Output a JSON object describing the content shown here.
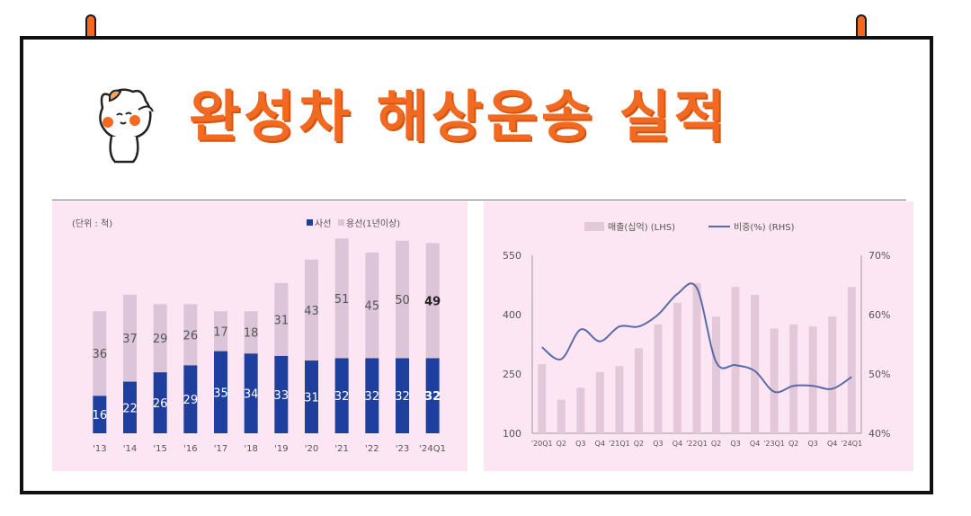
{
  "title": "완성차 해상운송 실적",
  "colors": {
    "accent": "#f26a21",
    "panel_bg": "#fce6f3",
    "own_ship": "#1f3f9e",
    "charter": "#dcc5d8",
    "sales_bar": "#e3c8d9",
    "share_line": "#5a6aa8"
  },
  "chart_data": [
    {
      "type": "bar",
      "stacked": true,
      "unit_label": "(단위 : 척)",
      "legend_position": "top-right",
      "categories": [
        "'13",
        "'14",
        "'15",
        "'16",
        "'17",
        "'18",
        "'19",
        "'20",
        "'21",
        "'22",
        "'23",
        "'24Q1"
      ],
      "series": [
        {
          "name": "사선",
          "color": "#1f3f9e",
          "values": [
            16,
            22,
            26,
            29,
            35,
            34,
            33,
            31,
            32,
            32,
            32,
            32
          ]
        },
        {
          "name": "용선(1년이상)",
          "color": "#dcc5d8",
          "values": [
            36,
            37,
            29,
            26,
            17,
            18,
            31,
            43,
            51,
            45,
            50,
            49
          ]
        }
      ],
      "ylim": [
        0,
        85
      ],
      "grid": false
    },
    {
      "type": "bar+line",
      "legend_position": "top",
      "categories": [
        "'20Q1",
        "Q2",
        "Q3",
        "Q4",
        "'21Q1",
        "Q2",
        "Q3",
        "Q4",
        "'22Q1",
        "Q2",
        "Q3",
        "Q4",
        "'23Q1",
        "Q2",
        "Q3",
        "Q4",
        "'24Q1"
      ],
      "series": [
        {
          "name": "매출(십억) (LHS)",
          "type": "bar",
          "axis": "left",
          "color": "#e3c8d9",
          "values": [
            275,
            185,
            215,
            255,
            270,
            315,
            375,
            430,
            480,
            395,
            470,
            450,
            365,
            375,
            370,
            395,
            470
          ]
        },
        {
          "name": "비중(%) (RHS)",
          "type": "line",
          "axis": "right",
          "color": "#5a6aa8",
          "values": [
            54.5,
            52.5,
            57.5,
            55.5,
            58,
            58,
            60,
            63.5,
            64.5,
            52,
            51.5,
            50.5,
            47,
            48,
            48,
            47.5,
            49.5
          ]
        }
      ],
      "left_ticks": [
        "550",
        "400",
        "250",
        "100"
      ],
      "right_ticks": [
        "70%",
        "60%",
        "50%",
        "40%"
      ],
      "ylim_left": [
        100,
        550
      ],
      "ylim_right": [
        40,
        70
      ],
      "grid": false
    }
  ]
}
